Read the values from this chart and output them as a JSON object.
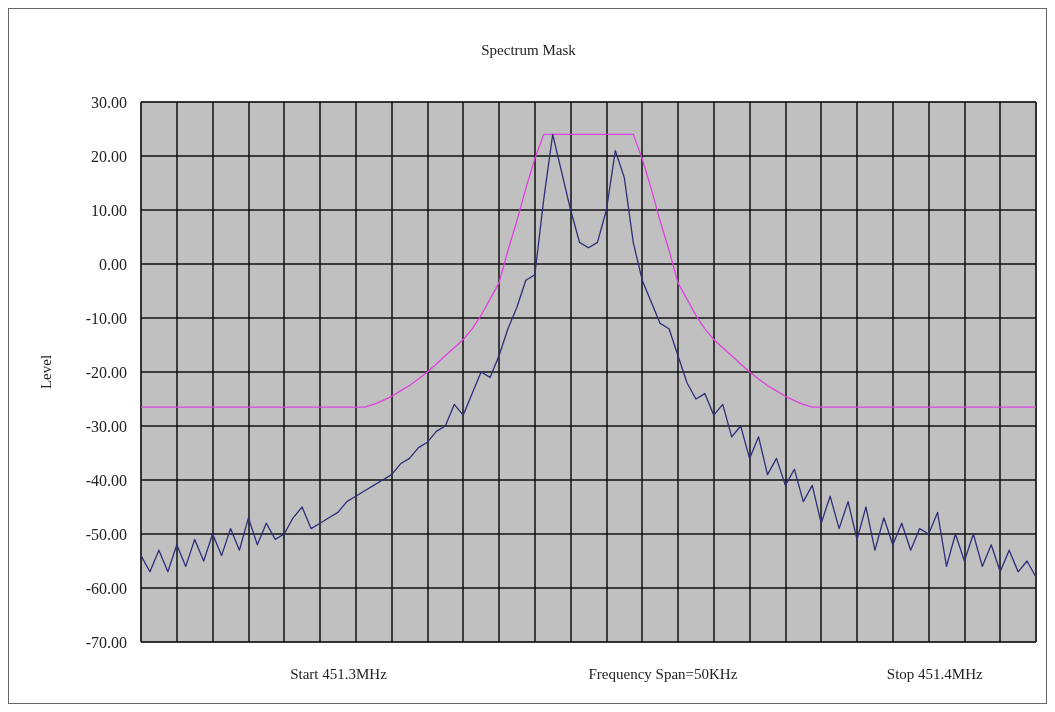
{
  "chart_data": {
    "type": "line",
    "title": "Spectrum Mask",
    "ylabel": "Level",
    "annotations": [
      "Start 451.3MHz",
      "Frequency Span=50KHz",
      "Stop 451.4MHz"
    ],
    "categories": [
      null,
      null,
      null,
      null,
      null,
      null,
      null,
      null,
      null,
      null,
      null,
      null,
      null,
      null,
      null,
      null,
      null,
      null,
      null,
      null,
      null,
      null,
      null,
      null,
      null,
      null,
      null,
      null,
      null,
      null,
      null,
      null,
      null,
      null,
      null,
      null,
      null,
      null,
      null,
      null,
      null,
      null,
      null,
      null,
      null,
      null,
      null,
      null,
      null,
      null,
      null,
      null,
      null,
      null,
      null,
      null,
      null,
      null,
      null,
      null,
      null,
      null,
      null,
      null,
      null,
      null,
      null,
      null,
      null,
      null,
      null,
      null,
      null,
      null,
      null,
      null,
      null,
      null,
      null,
      null,
      null,
      null,
      null,
      null,
      null,
      null,
      null,
      null,
      null,
      null,
      null,
      null,
      null,
      null,
      null,
      null,
      null,
      null,
      null,
      null,
      null
    ],
    "ylim": [
      -70,
      30
    ],
    "yticks": [
      {
        "value": -70,
        "label": "-70.00"
      },
      {
        "value": -60,
        "label": "-60.00"
      },
      {
        "value": -50,
        "label": "-50.00"
      },
      {
        "value": -40,
        "label": "-40.00"
      },
      {
        "value": -30,
        "label": "-30.00"
      },
      {
        "value": -20,
        "label": "-20.00"
      },
      {
        "value": -10,
        "label": "-10.00"
      },
      {
        "value": 0,
        "label": "0.00"
      },
      {
        "value": 10,
        "label": "10.00"
      },
      {
        "value": 20,
        "label": "20.00"
      },
      {
        "value": 30,
        "label": "30.00"
      }
    ],
    "grid": true,
    "tick_labels": "y",
    "series": [
      {
        "color": "#e040e0",
        "values": [
          -26.5,
          -26.5,
          -26.5,
          -26.5,
          -26.5,
          -26.5,
          -26.5,
          -26.5,
          -26.5,
          -26.5,
          -26.5,
          -26.5,
          -26.5,
          -26.5,
          -26.5,
          -26.5,
          -26.5,
          -26.5,
          -26.5,
          -26.5,
          -26.5,
          -26.5,
          -26.5,
          -26.5,
          -26.5,
          -26.5,
          -26,
          -25.3,
          -24.5,
          -23.5,
          -22.5,
          -21.3,
          -20,
          -18.5,
          -17,
          -15.5,
          -14,
          -12,
          -9.5,
          -6.5,
          -3.5,
          2.5,
          8,
          14,
          19.5,
          24,
          24,
          24,
          24,
          24,
          24,
          24,
          24,
          24,
          24,
          24,
          19.5,
          14,
          8,
          2.5,
          -3.5,
          -6.5,
          -9.5,
          -12,
          -14,
          -15.5,
          -17,
          -18.5,
          -20,
          -21.3,
          -22.5,
          -23.5,
          -24.5,
          -25.3,
          -26,
          -26.5,
          -26.5,
          -26.5,
          -26.5,
          -26.5,
          -26.5,
          -26.5,
          -26.5,
          -26.5,
          -26.5,
          -26.5,
          -26.5,
          -26.5,
          -26.5,
          -26.5,
          -26.5,
          -26.5,
          -26.5,
          -26.5,
          -26.5,
          -26.5,
          -26.5,
          -26.5,
          -26.5,
          -26.5,
          -26.5
        ]
      },
      {
        "color": "#2e2e7a",
        "values": [
          -54,
          -57,
          -53,
          -57,
          -52,
          -56,
          -51,
          -55,
          -50,
          -54,
          -49,
          -53,
          -47,
          -52,
          -48,
          -51,
          -50,
          -47,
          -45,
          -49,
          -48,
          -47,
          -46,
          -44,
          -43,
          -42,
          -41,
          -40,
          -39,
          -37,
          -36,
          -34,
          -33,
          -31,
          -30,
          -26,
          -28,
          -24,
          -20,
          -21,
          -17,
          -12,
          -8,
          -3,
          -2,
          12,
          24,
          17,
          10,
          4,
          3,
          4,
          10,
          21,
          16,
          4,
          -3,
          -7,
          -11,
          -12,
          -17,
          -22,
          -25,
          -24,
          -28,
          -26,
          -32,
          -30,
          -36,
          -32,
          -39,
          -36,
          -41,
          -38,
          -44,
          -41,
          -48,
          -43,
          -49,
          -44,
          -51,
          -45,
          -53,
          -47,
          -52,
          -48,
          -53,
          -49,
          -50,
          -46,
          -56,
          -50,
          -55,
          -50,
          -56,
          -52,
          -57,
          -53,
          -57,
          -55,
          -58
        ]
      }
    ]
  }
}
